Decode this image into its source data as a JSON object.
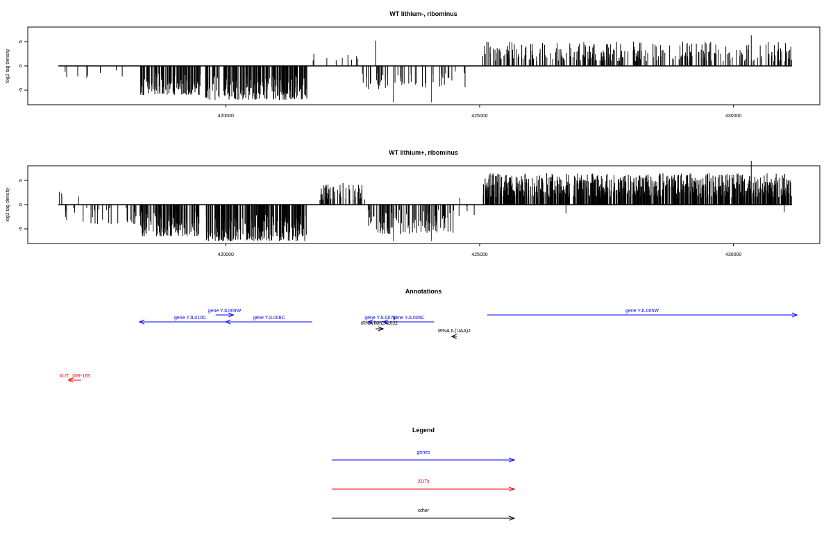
{
  "chart_data": [
    {
      "type": "bar",
      "title": "WT lithium-, ribominus",
      "ylabel": "log2 tag density",
      "xlim": [
        416100,
        431700
      ],
      "ylim": [
        -8,
        8
      ],
      "x_ticks": [
        420000,
        425000,
        430000
      ],
      "y_ticks": [
        -5,
        0,
        5
      ],
      "seed": 11,
      "density_profile": [
        {
          "from": 416700,
          "to": 418300,
          "count": 8,
          "min": -2.5,
          "max": -0.5
        },
        {
          "from": 418300,
          "to": 419500,
          "count": 120,
          "min": -6,
          "max": -1.5
        },
        {
          "from": 419600,
          "to": 421600,
          "count": 220,
          "min": -7,
          "max": -2
        },
        {
          "from": 421700,
          "to": 422600,
          "count": 9,
          "min": 1,
          "max": 3.5
        },
        {
          "from": 422600,
          "to": 423600,
          "count": 30,
          "min": -5,
          "max": -1
        },
        {
          "from": 423600,
          "to": 424800,
          "count": 22,
          "min": -4.5,
          "max": -1
        },
        {
          "from": 425050,
          "to": 431150,
          "count": 300,
          "min": 1,
          "max": 5
        }
      ],
      "spikes": [
        {
          "x": 422950,
          "y": 5.2
        },
        {
          "x": 430350,
          "y": 6.3
        },
        {
          "x": 424700,
          "y": -1.5
        }
      ],
      "highlight_bars": [
        {
          "x": 423300,
          "y": -7.5,
          "color": "#ff0000"
        },
        {
          "x": 424050,
          "y": -7.5,
          "color": "#ff0000"
        }
      ]
    },
    {
      "type": "bar",
      "title": "WT lithium+, ribominus",
      "ylabel": "log2 tag density",
      "xlim": [
        416100,
        431700
      ],
      "ylim": [
        -8,
        8
      ],
      "x_ticks": [
        420000,
        425000,
        430000
      ],
      "y_ticks": [
        -5,
        0,
        5
      ],
      "seed": 29,
      "density_profile": [
        {
          "from": 416700,
          "to": 416800,
          "count": 3,
          "min": 1.5,
          "max": 2.8
        },
        {
          "from": 416800,
          "to": 418300,
          "count": 30,
          "min": -4,
          "max": -0.5
        },
        {
          "from": 418300,
          "to": 419500,
          "count": 150,
          "min": -6.5,
          "max": -1.5
        },
        {
          "from": 419600,
          "to": 421600,
          "count": 280,
          "min": -7.5,
          "max": -2
        },
        {
          "from": 421850,
          "to": 422800,
          "count": 60,
          "min": 1,
          "max": 4.5
        },
        {
          "from": 422800,
          "to": 424500,
          "count": 110,
          "min": -6,
          "max": -1
        },
        {
          "from": 424500,
          "to": 424900,
          "count": 8,
          "min": -2.5,
          "max": 2
        },
        {
          "from": 425050,
          "to": 431150,
          "count": 900,
          "min": 1.5,
          "max": 6.5
        }
      ],
      "spikes": [
        {
          "x": 430350,
          "y": 9.0
        },
        {
          "x": 426700,
          "y": -1.8
        },
        {
          "x": 431000,
          "y": -1.5
        },
        {
          "x": 417100,
          "y": 1.7
        }
      ],
      "highlight_bars": [
        {
          "x": 423300,
          "y": -7.5,
          "color": "#ff0000"
        },
        {
          "x": 424050,
          "y": -7.5,
          "color": "#ff0000"
        }
      ]
    }
  ],
  "annotations": {
    "title": "Annotations",
    "features": [
      {
        "label": "gene YJL010C",
        "start": 418300,
        "end": 420300,
        "strand": "-",
        "color": "#0000ff"
      },
      {
        "label": "gene YJL009W",
        "start": 419800,
        "end": 420150,
        "strand": "+",
        "color": "#0000ff"
      },
      {
        "label": "gene YJL008C",
        "start": 420000,
        "end": 421700,
        "strand": "-",
        "color": "#0000ff"
      },
      {
        "label": "gene YJL007C",
        "start": 422800,
        "end": 423300,
        "strand": "-",
        "color": "#0000ff"
      },
      {
        "label": "gene YJL006C",
        "start": 423100,
        "end": 424100,
        "strand": "-",
        "color": "#0000ff"
      },
      {
        "label": "gene YJL005W",
        "start": 425150,
        "end": 431250,
        "strand": "+",
        "color": "#0000ff"
      },
      {
        "label": "tRNA fM(CAU)J2",
        "start": 422950,
        "end": 423100,
        "strand": "+",
        "color": "#000000"
      },
      {
        "label": "tRNA tL(UAA)J",
        "start": 424450,
        "end": 424550,
        "strand": "-",
        "color": "#000000"
      },
      {
        "label": "XUT_10R-165",
        "start": 416900,
        "end": 417150,
        "strand": "-",
        "color": "#ff0000"
      }
    ]
  },
  "legend": {
    "title": "Legend",
    "items": [
      {
        "label": "genes",
        "color": "#0000ff"
      },
      {
        "label": "XUTs",
        "color": "#ff0000"
      },
      {
        "label": "other",
        "color": "#000000"
      }
    ]
  }
}
